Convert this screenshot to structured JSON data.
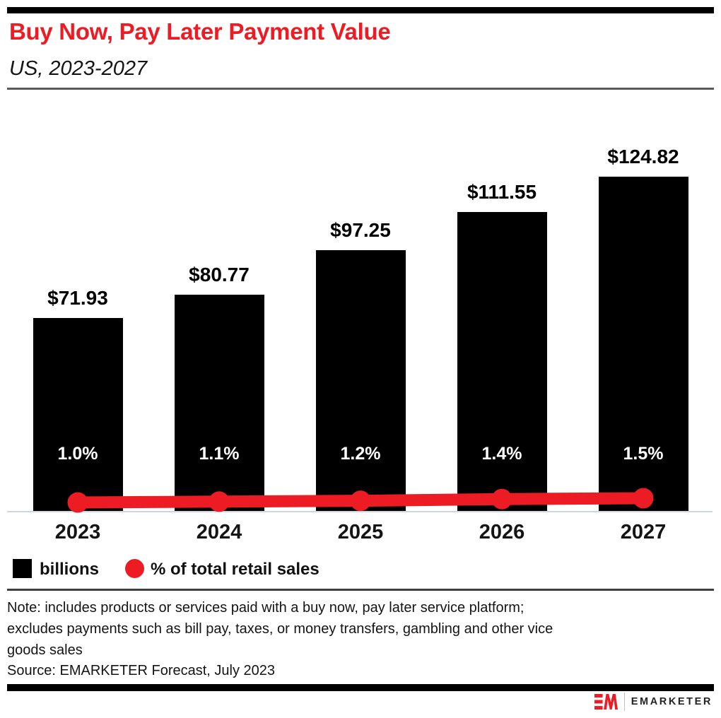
{
  "header": {
    "title": "Buy Now, Pay Later Payment Value",
    "subtitle": "US, 2023-2027"
  },
  "chart_data": {
    "type": "bar",
    "combo": "bar-with-line-overlay",
    "title": "Buy Now, Pay Later Payment Value",
    "subtitle": "US, 2023-2027",
    "categories": [
      "2023",
      "2024",
      "2025",
      "2026",
      "2027"
    ],
    "series": [
      {
        "name": "billions",
        "type": "bar",
        "unit": "US$ billions",
        "values": [
          71.93,
          80.77,
          97.25,
          111.55,
          124.82
        ],
        "labels": [
          "$71.93",
          "$80.77",
          "$97.25",
          "$111.55",
          "$124.82"
        ],
        "color": "#000000"
      },
      {
        "name": "% of total retail sales",
        "type": "line",
        "unit": "percent",
        "values": [
          1.0,
          1.1,
          1.2,
          1.4,
          1.5
        ],
        "labels": [
          "1.0%",
          "1.1%",
          "1.2%",
          "1.4%",
          "1.5%"
        ],
        "color": "#ed1b23"
      }
    ],
    "legend": [
      {
        "label": "billions",
        "swatch": "black-square"
      },
      {
        "label": "% of total retail sales",
        "swatch": "red-circle"
      }
    ],
    "gridlines": false,
    "value_axis_visible": false,
    "legend_position": "bottom-left"
  },
  "footer": {
    "note_lines": [
      "Note: includes products or services paid with a buy now, pay later service platform;",
      "excludes payments such as bill pay, taxes, or money transfers, gambling and other vice",
      "goods sales"
    ],
    "source": "Source: EMARKETER Forecast, July 2023",
    "brand": {
      "monogram": "EM",
      "name": "EMARKETER"
    }
  },
  "colors": {
    "accent_red": "#ed1b23",
    "bar_black": "#000000",
    "axis_line": "#ccd6e6",
    "rule_gray": "#5a5a5a",
    "rule_dark": "#3f3f3f"
  }
}
